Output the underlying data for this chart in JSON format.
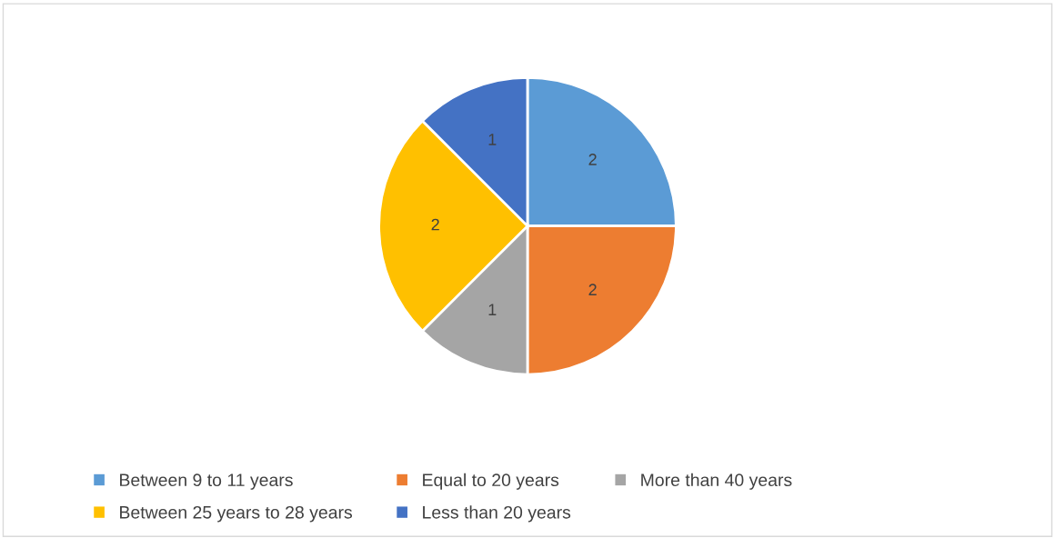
{
  "chart_data": {
    "type": "pie",
    "categories": [
      "Between 9 to 11 years",
      "Equal to 20 years",
      "More than 40 years",
      "Between 25 years to 28 years",
      "Less than 20 years"
    ],
    "values": [
      2,
      2,
      1,
      2,
      1
    ],
    "colors": [
      "#5b9bd5",
      "#ed7d31",
      "#a5a5a5",
      "#ffc000",
      "#4472c4"
    ],
    "data_labels": true,
    "legend": "bottom"
  }
}
